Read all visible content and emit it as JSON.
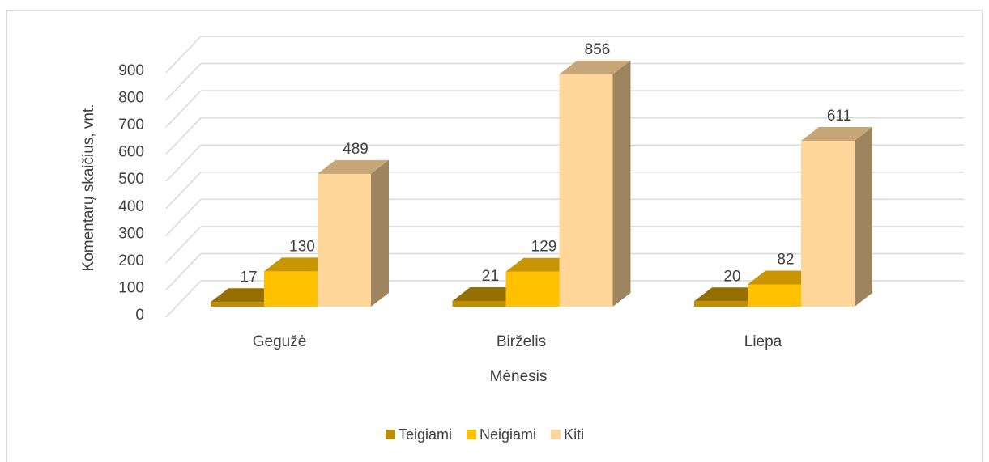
{
  "chart_data": {
    "type": "bar3d",
    "x_label": "Mėnesis",
    "y_label": "Komentarų skaičius, vnt.",
    "categories": [
      "Gegužė",
      "Birželis",
      "Liepa"
    ],
    "series": [
      {
        "name": "Teigiami",
        "color": "#bf8f00",
        "values": [
          17,
          21,
          20
        ]
      },
      {
        "name": "Neigiami",
        "color": "#ffc000",
        "values": [
          130,
          129,
          82
        ]
      },
      {
        "name": "Kiti",
        "color": "#ffd699",
        "values": [
          489,
          856,
          611
        ]
      }
    ],
    "ylim": [
      0,
      900
    ],
    "yticks": [
      0,
      100,
      200,
      300,
      400,
      500,
      600,
      700,
      800,
      900
    ],
    "grid": true,
    "legend": "bottom"
  }
}
